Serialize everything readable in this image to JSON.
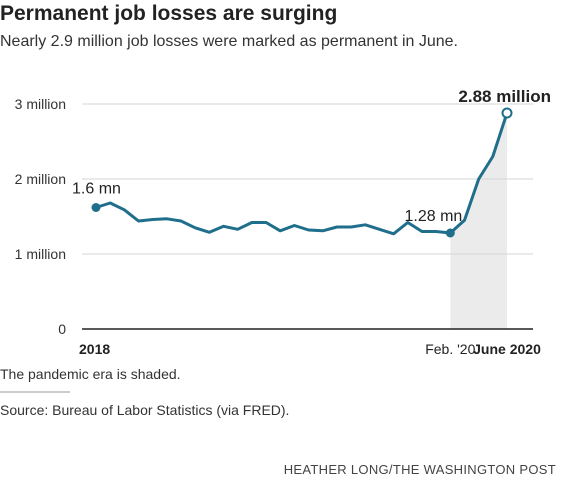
{
  "header": {
    "title": "Permanent job losses are surging",
    "subtitle": "Nearly 2.9 million job losses were marked as permanent in June."
  },
  "footer": {
    "note": "The pandemic era is shaded.",
    "source": "Source: Bureau of Labor Statistics (via FRED).",
    "credit": "HEATHER LONG/THE WASHINGTON POST"
  },
  "colors": {
    "line": "#1f6e8c",
    "shade": "#ebebeb",
    "grid": "#d6d6d6"
  },
  "chart_data": {
    "type": "line",
    "title": "",
    "xlabel": "",
    "ylabel": "",
    "ylim": [
      0,
      3000000
    ],
    "grid": true,
    "yticks": [
      {
        "value": 0,
        "label": "0"
      },
      {
        "value": 1000000,
        "label": "1 million"
      },
      {
        "value": 2000000,
        "label": "2 million"
      },
      {
        "value": 3000000,
        "label": "3 million"
      }
    ],
    "xticks": [
      {
        "date": "2018-01",
        "label": "2018",
        "bold": true
      },
      {
        "date": "2020-02",
        "label": "Feb. '20",
        "bold": false
      },
      {
        "date": "2020-06",
        "label": "June 2020",
        "bold": true
      }
    ],
    "shaded_region": {
      "from": "2020-02",
      "to": "2020-06"
    },
    "annotations": [
      {
        "date": "2018-01",
        "label": "1.6 mn",
        "bold": false,
        "marker": "filled"
      },
      {
        "date": "2020-02",
        "label": "1.28 mn",
        "bold": false,
        "marker": "filled"
      },
      {
        "date": "2020-06",
        "label": "2.88 million",
        "bold": true,
        "marker": "open"
      }
    ],
    "series": [
      {
        "x": [
          "2018-01",
          "2018-02",
          "2018-03",
          "2018-04",
          "2018-05",
          "2018-06",
          "2018-07",
          "2018-08",
          "2018-09",
          "2018-10",
          "2018-11",
          "2018-12",
          "2019-01",
          "2019-02",
          "2019-03",
          "2019-04",
          "2019-05",
          "2019-06",
          "2019-07",
          "2019-08",
          "2019-09",
          "2019-10",
          "2019-11",
          "2019-12",
          "2020-01",
          "2020-02",
          "2020-03",
          "2020-04",
          "2020-05",
          "2020-06"
        ],
        "values": [
          1620000,
          1680000,
          1590000,
          1440000,
          1460000,
          1470000,
          1440000,
          1350000,
          1290000,
          1370000,
          1330000,
          1420000,
          1420000,
          1310000,
          1380000,
          1320000,
          1310000,
          1360000,
          1360000,
          1390000,
          1330000,
          1270000,
          1420000,
          1300000,
          1300000,
          1280000,
          1450000,
          2000000,
          2300000,
          2880000
        ]
      }
    ]
  }
}
